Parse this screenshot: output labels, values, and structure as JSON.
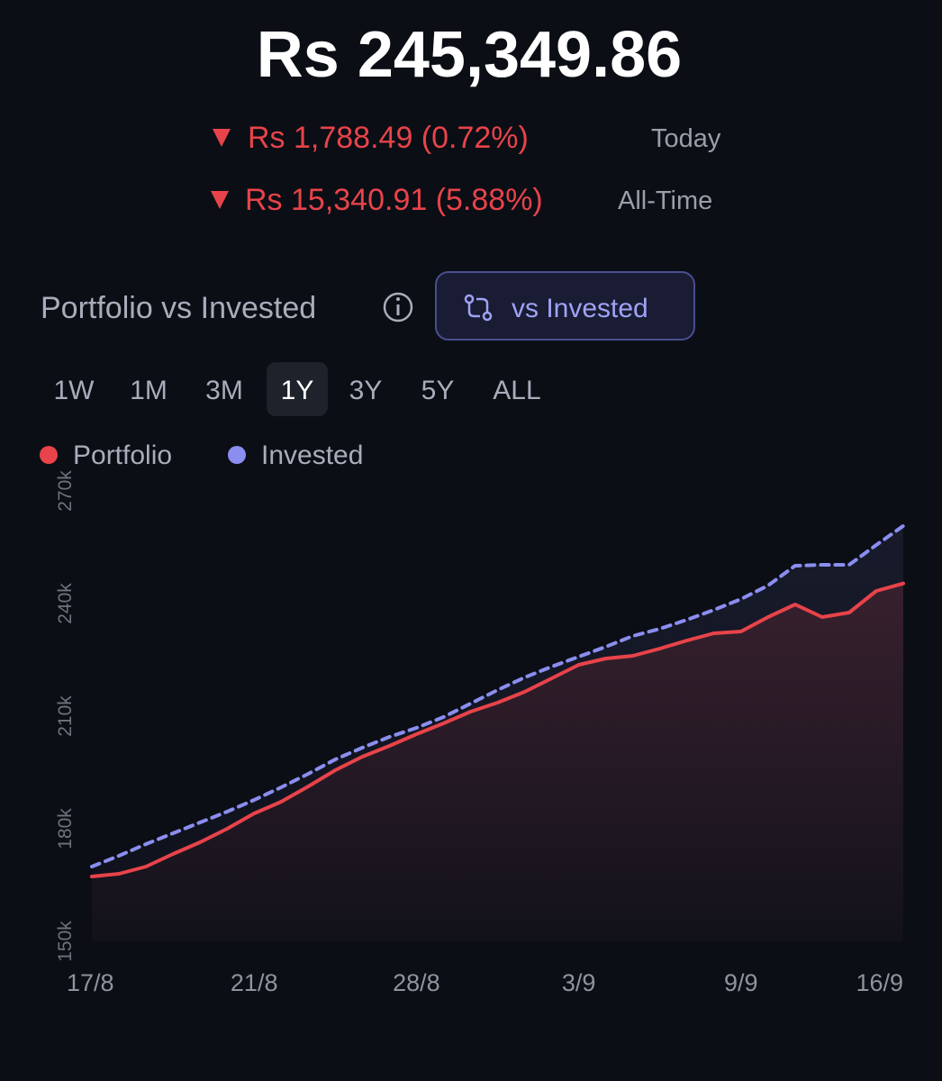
{
  "header": {
    "value": "Rs 245,349.86",
    "today_change": "Rs 1,788.49 (0.72%)",
    "today_label": "Today",
    "alltime_change": "Rs 15,340.91 (5.88%)",
    "alltime_label": "All-Time"
  },
  "section": {
    "title": "Portfolio vs Invested",
    "button": "vs Invested"
  },
  "tabs": [
    "1W",
    "1M",
    "3M",
    "1Y",
    "3Y",
    "5Y",
    "ALL"
  ],
  "active_tab_index": 3,
  "chart_data": {
    "type": "line",
    "categories": [
      "17/8",
      null,
      null,
      null,
      null,
      null,
      "21/8",
      null,
      null,
      null,
      null,
      null,
      "28/8",
      null,
      null,
      null,
      null,
      null,
      "3/9",
      null,
      null,
      null,
      null,
      null,
      "9/9",
      null,
      null,
      null,
      null,
      null,
      "16/9"
    ],
    "series": [
      {
        "name": "Portfolio",
        "color": "#e8434a",
        "dashed": false,
        "values": [
          167280,
          168000,
          169920,
          173280,
          176400,
          180000,
          184080,
          187200,
          191280,
          195600,
          199200,
          202080,
          205200,
          208080,
          211200,
          213600,
          216480,
          220080,
          223680,
          225360,
          226080,
          228000,
          230160,
          232080,
          232560,
          236400,
          239760,
          236400,
          237600,
          243360,
          245350
        ]
      },
      {
        "name": "Invested",
        "color": "#8b8ef0",
        "dashed": true,
        "values": [
          169920,
          172800,
          175920,
          178800,
          181680,
          184560,
          187680,
          191040,
          194640,
          198480,
          201600,
          204480,
          206880,
          209760,
          213360,
          216960,
          220320,
          223200,
          225840,
          228480,
          231360,
          233280,
          235680,
          238320,
          241200,
          244800,
          250080,
          250320,
          250320,
          255600,
          260691
        ]
      }
    ],
    "ylim": [
      150000,
      270000
    ],
    "yticks": [
      {
        "value": 150000,
        "label": "150k"
      },
      {
        "value": 180000,
        "label": "180k"
      },
      {
        "value": 210000,
        "label": "210k"
      },
      {
        "value": 240000,
        "label": "240k"
      },
      {
        "value": 270000,
        "label": "270k"
      }
    ],
    "grid": false
  }
}
